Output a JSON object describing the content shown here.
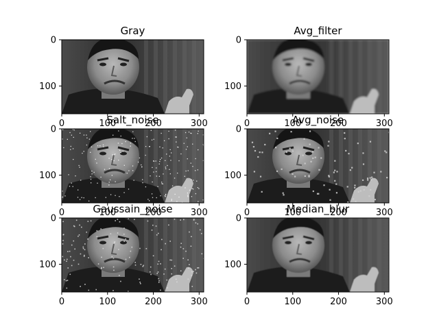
{
  "panels": [
    {
      "title": "Gray",
      "kind": "clean",
      "x_ticks": [
        "0",
        "100",
        "200",
        "300"
      ],
      "y_ticks": [
        "0",
        "100"
      ]
    },
    {
      "title": "Avg_filter",
      "kind": "blur",
      "x_ticks": [
        "0",
        "100",
        "200",
        "300"
      ],
      "y_ticks": [
        "0",
        "100"
      ]
    },
    {
      "title": "Salt_noise",
      "kind": "salt",
      "x_ticks": [
        "0",
        "100",
        "200",
        "300"
      ],
      "y_ticks": [
        "0",
        "100"
      ]
    },
    {
      "title": "Avg_noise",
      "kind": "avgnoise",
      "x_ticks": [
        "0",
        "100",
        "200",
        "300"
      ],
      "y_ticks": [
        "0",
        "100"
      ]
    },
    {
      "title": "Gaussain_noise",
      "kind": "gauss",
      "x_ticks": [
        "0",
        "100",
        "200",
        "300"
      ],
      "y_ticks": [
        "0",
        "100"
      ]
    },
    {
      "title": "Median_blur",
      "kind": "median",
      "x_ticks": [
        "0",
        "100",
        "200",
        "300"
      ],
      "y_ticks": [
        "0",
        "100"
      ]
    }
  ],
  "image_extent": {
    "width": 310,
    "height": 160
  }
}
